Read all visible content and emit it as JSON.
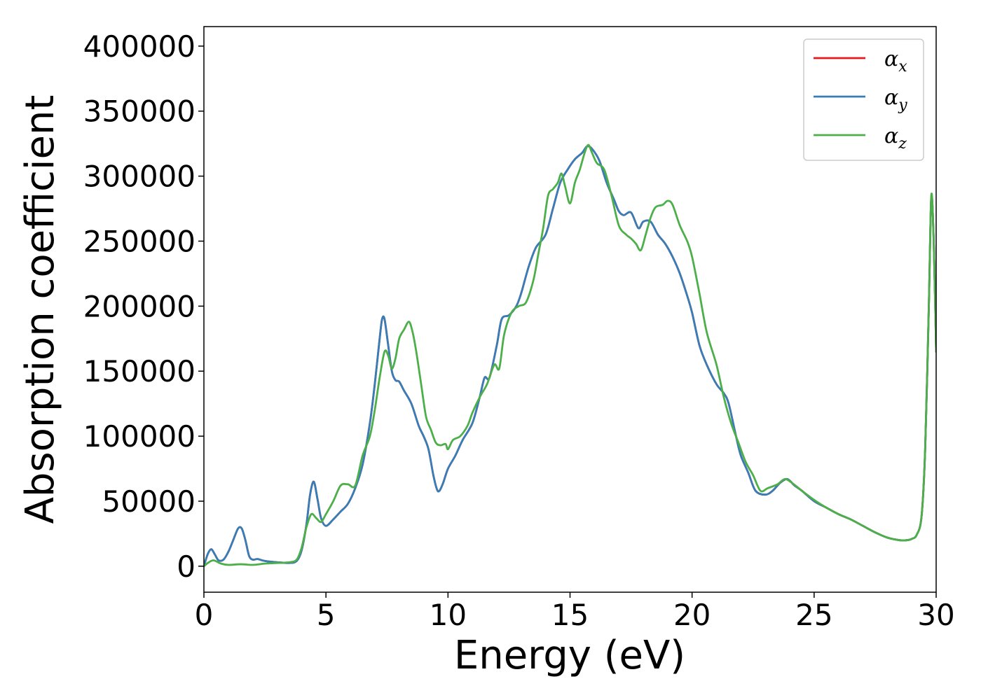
{
  "chart_data": {
    "type": "line",
    "title": "",
    "xlabel": "Energy (eV)",
    "ylabel": "Absorption coefficient",
    "xlim": [
      0,
      30
    ],
    "ylim": [
      -20000,
      415000
    ],
    "xticks": [
      0,
      5,
      10,
      15,
      20,
      25,
      30
    ],
    "xtick_labels": [
      "0",
      "5",
      "10",
      "15",
      "20",
      "25",
      "30"
    ],
    "yticks": [
      0,
      50000,
      100000,
      150000,
      200000,
      250000,
      300000,
      350000,
      400000
    ],
    "ytick_labels": [
      "0",
      "50000",
      "100000",
      "150000",
      "200000",
      "250000",
      "300000",
      "350000",
      "400000"
    ],
    "grid": false,
    "legend_position": "top-right",
    "series": [
      {
        "name": "αx",
        "symbol": "α",
        "subscript": "x",
        "color": "#e41a1c",
        "x": [
          0,
          0.15,
          0.3,
          0.45,
          0.6,
          0.8,
          1.0,
          1.2,
          1.4,
          1.55,
          1.7,
          1.85,
          2.0,
          2.2,
          2.5,
          3.0,
          3.5,
          3.8,
          4.0,
          4.2,
          4.35,
          4.5,
          4.65,
          4.8,
          5.0,
          5.3,
          5.6,
          5.9,
          6.2,
          6.5,
          6.8,
          7.0,
          7.2,
          7.3,
          7.4,
          7.55,
          7.7,
          7.85,
          8.0,
          8.2,
          8.5,
          8.8,
          9.0,
          9.2,
          9.4,
          9.55,
          9.65,
          9.8,
          10.0,
          10.3,
          10.6,
          11.0,
          11.3,
          11.5,
          11.7,
          12.0,
          12.2,
          12.5,
          12.8,
          13.0,
          13.3,
          13.6,
          14.0,
          14.3,
          14.6,
          14.9,
          15.2,
          15.5,
          15.7,
          15.9,
          16.2,
          16.5,
          16.8,
          17.0,
          17.2,
          17.5,
          17.8,
          18.0,
          18.3,
          18.6,
          18.9,
          19.2,
          19.5,
          19.8,
          20.0,
          20.3,
          20.6,
          21.0,
          21.3,
          21.5,
          21.8,
          22.0,
          22.3,
          22.6,
          23.0,
          23.3,
          23.6,
          23.9,
          24.2,
          24.5,
          25.0,
          25.5,
          26.0,
          26.5,
          27.0,
          27.5,
          28.0,
          28.5,
          28.8,
          29.0,
          29.2,
          29.4,
          29.55,
          29.7,
          29.8,
          29.9,
          30.0
        ],
        "values": [
          0,
          9000,
          13000,
          9000,
          4500,
          5000,
          11000,
          20000,
          29000,
          29000,
          20000,
          8000,
          5000,
          5500,
          4000,
          3000,
          2500,
          4000,
          12000,
          32000,
          55000,
          65000,
          52000,
          37000,
          31000,
          36000,
          42000,
          48000,
          60000,
          78000,
          110000,
          140000,
          175000,
          190000,
          190000,
          170000,
          150000,
          143000,
          142000,
          135000,
          125000,
          108000,
          100000,
          90000,
          70000,
          59000,
          58000,
          64000,
          75000,
          85000,
          97000,
          110000,
          130000,
          145000,
          145000,
          170000,
          190000,
          193000,
          200000,
          210000,
          230000,
          245000,
          255000,
          275000,
          295000,
          305000,
          313000,
          318000,
          323000,
          321000,
          312000,
          295000,
          282000,
          273000,
          270000,
          272000,
          260000,
          265000,
          265000,
          255000,
          248000,
          238000,
          225000,
          208000,
          195000,
          170000,
          155000,
          140000,
          133000,
          125000,
          100000,
          85000,
          72000,
          58000,
          55000,
          58000,
          64000,
          67000,
          62000,
          58000,
          50000,
          45000,
          40000,
          36000,
          31000,
          26000,
          22000,
          20000,
          20000,
          21000,
          24000,
          38000,
          90000,
          200000,
          283000,
          250000,
          165000
        ]
      },
      {
        "name": "αy",
        "symbol": "α",
        "subscript": "y",
        "color": "#377eb8",
        "x": [
          0,
          0.15,
          0.3,
          0.45,
          0.6,
          0.8,
          1.0,
          1.2,
          1.4,
          1.55,
          1.7,
          1.85,
          2.0,
          2.2,
          2.5,
          3.0,
          3.5,
          3.8,
          4.0,
          4.2,
          4.35,
          4.5,
          4.65,
          4.8,
          5.0,
          5.3,
          5.6,
          5.9,
          6.2,
          6.5,
          6.8,
          7.0,
          7.2,
          7.3,
          7.4,
          7.55,
          7.7,
          7.85,
          8.0,
          8.2,
          8.5,
          8.8,
          9.0,
          9.2,
          9.4,
          9.55,
          9.65,
          9.8,
          10.0,
          10.3,
          10.6,
          11.0,
          11.3,
          11.5,
          11.7,
          12.0,
          12.2,
          12.5,
          12.8,
          13.0,
          13.3,
          13.6,
          14.0,
          14.3,
          14.6,
          14.9,
          15.2,
          15.5,
          15.7,
          15.9,
          16.2,
          16.5,
          16.8,
          17.0,
          17.2,
          17.5,
          17.8,
          18.0,
          18.3,
          18.6,
          18.9,
          19.2,
          19.5,
          19.8,
          20.0,
          20.3,
          20.6,
          21.0,
          21.3,
          21.5,
          21.8,
          22.0,
          22.3,
          22.6,
          23.0,
          23.3,
          23.6,
          23.9,
          24.2,
          24.5,
          25.0,
          25.5,
          26.0,
          26.5,
          27.0,
          27.5,
          28.0,
          28.5,
          28.8,
          29.0,
          29.2,
          29.4,
          29.55,
          29.7,
          29.8,
          29.9,
          30.0
        ],
        "values": [
          0,
          9000,
          13000,
          9000,
          4500,
          5000,
          11000,
          20000,
          29000,
          29000,
          20000,
          8000,
          5000,
          5500,
          4000,
          3000,
          2500,
          4000,
          12000,
          32000,
          55000,
          65000,
          52000,
          37000,
          31000,
          36000,
          42000,
          48000,
          60000,
          78000,
          110000,
          140000,
          175000,
          190000,
          190000,
          170000,
          150000,
          143000,
          142000,
          135000,
          125000,
          108000,
          100000,
          90000,
          70000,
          59000,
          58000,
          64000,
          75000,
          85000,
          97000,
          110000,
          130000,
          145000,
          145000,
          170000,
          190000,
          193000,
          200000,
          210000,
          230000,
          245000,
          255000,
          275000,
          295000,
          305000,
          313000,
          318000,
          323000,
          321000,
          312000,
          295000,
          282000,
          273000,
          270000,
          272000,
          260000,
          265000,
          265000,
          255000,
          248000,
          238000,
          225000,
          208000,
          195000,
          170000,
          155000,
          140000,
          133000,
          125000,
          100000,
          85000,
          72000,
          58000,
          55000,
          58000,
          64000,
          67000,
          62000,
          58000,
          50000,
          45000,
          40000,
          36000,
          31000,
          26000,
          22000,
          20000,
          20000,
          21000,
          24000,
          38000,
          90000,
          200000,
          283000,
          250000,
          165000
        ]
      },
      {
        "name": "αz",
        "symbol": "α",
        "subscript": "z",
        "color": "#4daf4a",
        "x": [
          0,
          0.2,
          0.4,
          0.7,
          1.0,
          1.5,
          2.0,
          2.5,
          3.0,
          3.5,
          3.8,
          4.0,
          4.2,
          4.4,
          4.6,
          4.8,
          5.0,
          5.3,
          5.6,
          5.9,
          6.2,
          6.5,
          6.8,
          7.0,
          7.2,
          7.4,
          7.55,
          7.7,
          7.85,
          8.0,
          8.2,
          8.4,
          8.55,
          8.7,
          8.9,
          9.1,
          9.3,
          9.5,
          9.7,
          9.9,
          10.0,
          10.2,
          10.5,
          10.8,
          11.0,
          11.3,
          11.6,
          11.9,
          12.1,
          12.3,
          12.6,
          12.9,
          13.2,
          13.5,
          13.7,
          13.9,
          14.1,
          14.3,
          14.5,
          14.65,
          14.8,
          15.0,
          15.2,
          15.4,
          15.6,
          15.75,
          15.9,
          16.1,
          16.4,
          16.7,
          17.0,
          17.3,
          17.5,
          17.7,
          17.9,
          18.1,
          18.3,
          18.5,
          18.8,
          19.0,
          19.2,
          19.5,
          19.8,
          20.0,
          20.3,
          20.6,
          21.0,
          21.3,
          21.6,
          21.9,
          22.2,
          22.5,
          22.8,
          23.1,
          23.5,
          23.8,
          24.1,
          24.5,
          25.0,
          25.5,
          26.0,
          26.5,
          27.0,
          27.5,
          28.0,
          28.5,
          28.8,
          29.0,
          29.2,
          29.4,
          29.55,
          29.7,
          29.8,
          29.9,
          30.0
        ],
        "values": [
          0,
          3000,
          4500,
          2000,
          1000,
          1500,
          1000,
          2000,
          2500,
          3000,
          5000,
          14000,
          30000,
          40000,
          37000,
          34000,
          40000,
          50000,
          62000,
          63000,
          62000,
          85000,
          100000,
          120000,
          145000,
          165000,
          162000,
          152000,
          160000,
          175000,
          182000,
          188000,
          180000,
          165000,
          140000,
          115000,
          105000,
          95000,
          93000,
          94000,
          90000,
          97000,
          100000,
          108000,
          118000,
          130000,
          140000,
          155000,
          152000,
          178000,
          195000,
          200000,
          203000,
          220000,
          240000,
          260000,
          285000,
          290000,
          295000,
          302000,
          292000,
          279000,
          295000,
          305000,
          318000,
          324000,
          318000,
          310000,
          305000,
          285000,
          262000,
          255000,
          252000,
          248000,
          243000,
          255000,
          268000,
          276000,
          278000,
          281000,
          278000,
          262000,
          250000,
          238000,
          210000,
          180000,
          155000,
          130000,
          110000,
          95000,
          80000,
          70000,
          58000,
          60000,
          63000,
          67000,
          64000,
          58000,
          51000,
          45000,
          40000,
          36000,
          31000,
          26000,
          22000,
          20000,
          20000,
          21000,
          24000,
          38000,
          90000,
          200000,
          285000,
          250000,
          165000
        ]
      }
    ]
  }
}
